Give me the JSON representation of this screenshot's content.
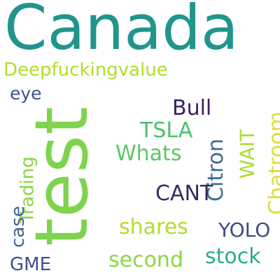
{
  "words": [
    {
      "text": "Canada",
      "color": "#21958b"
    },
    {
      "text": "test",
      "color": "#7fd34e"
    },
    {
      "text": "Deepfuckingvalue",
      "color": "#b2dd2c"
    },
    {
      "text": "eye",
      "color": "#3b528b"
    },
    {
      "text": "Bull",
      "color": "#3e1f5e"
    },
    {
      "text": "TSLA",
      "color": "#4ac16d"
    },
    {
      "text": "Whats",
      "color": "#5cc863"
    },
    {
      "text": "Citron",
      "color": "#3c6f8b"
    },
    {
      "text": "WAIT",
      "color": "#aadc32"
    },
    {
      "text": "Chatroom",
      "color": "#e1dd37"
    },
    {
      "text": "Trading",
      "color": "#8dd544"
    },
    {
      "text": "case",
      "color": "#40648f"
    },
    {
      "text": "CANT",
      "color": "#3b2a5e"
    },
    {
      "text": "shares",
      "color": "#b2dd2c"
    },
    {
      "text": "YOLO",
      "color": "#3e4a89"
    },
    {
      "text": "second",
      "color": "#8ed645"
    },
    {
      "text": "stock",
      "color": "#29af7f"
    },
    {
      "text": "GME",
      "color": "#3d4e8a"
    }
  ]
}
